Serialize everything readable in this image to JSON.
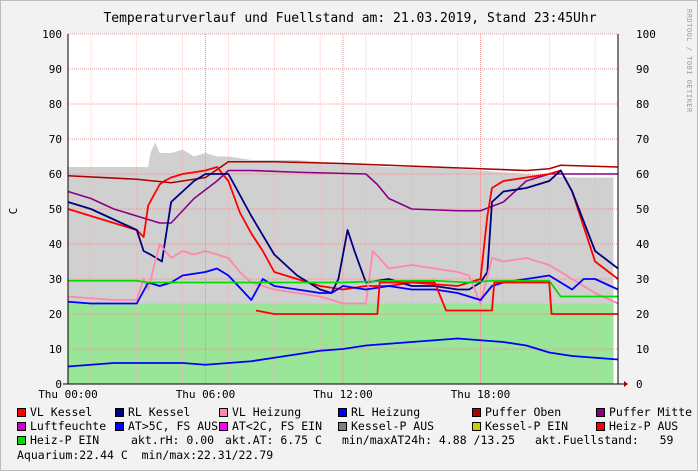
{
  "colors": {
    "vl_kessel": "#ff0000",
    "rl_kessel": "#000080",
    "vl_heizung": "#ff88aa",
    "rl_heizung": "#0000ff",
    "puffer_oben": "#aa0000",
    "puffer_mitte": "#880088",
    "luftfeuchte": "#cc00cc",
    "at_gt5": "#0000ff",
    "at_lt2": "#ff00ff",
    "kessel_p_aus": "#808080",
    "kessel_p_ein": "#cccc00",
    "heiz_p_aus": "#ff0000",
    "heiz_p_ein": "#00dd00",
    "fill_grey": "#d0d0d0",
    "fill_green": "#99e699"
  },
  "chart_data": {
    "type": "line",
    "title": "Temperaturverlauf und Fuellstand am: 21.03.2019, Stand 23:45Uhr",
    "watermark": "RRDTOOL / TOBI OETIKER",
    "ylabel": "C",
    "ylim": [
      0,
      100
    ],
    "yticks": [
      "0",
      "10",
      "20",
      "30",
      "40",
      "50",
      "60",
      "70",
      "80",
      "90",
      "100"
    ],
    "xlim": [
      0,
      24
    ],
    "xticks": [
      {
        "x": 0,
        "label": "Thu 00:00"
      },
      {
        "x": 6,
        "label": "Thu 06:00"
      },
      {
        "x": 12,
        "label": "Thu 12:00"
      },
      {
        "x": 18,
        "label": "Thu 18:00"
      }
    ],
    "series": [
      {
        "key": "fill_grey",
        "kind": "area",
        "x": [
          0,
          3,
          3.5,
          3.6,
          3.8,
          4,
          4.5,
          5,
          5.5,
          6,
          6.5,
          7,
          8,
          10,
          12,
          14,
          16,
          18,
          20,
          22,
          23.8
        ],
        "y": [
          62,
          62,
          62,
          66,
          69,
          66,
          66,
          67,
          65,
          66,
          65,
          65,
          64,
          64,
          63,
          62,
          62,
          61,
          60,
          59,
          59
        ]
      },
      {
        "key": "fill_green",
        "kind": "area",
        "x": [
          0,
          23.8
        ],
        "y": [
          23,
          23
        ]
      },
      {
        "key": "puffer_oben",
        "name": "Puffer Oben",
        "x": [
          0,
          3,
          4.5,
          6,
          7,
          9,
          12,
          14,
          16,
          18,
          20,
          21,
          21.5,
          24
        ],
        "y": [
          59.5,
          58.5,
          57.5,
          59,
          63.5,
          63.5,
          63,
          62.5,
          62,
          61.5,
          61,
          61.5,
          62.5,
          62
        ]
      },
      {
        "key": "puffer_mitte",
        "name": "Puffer Mitte",
        "x": [
          0,
          1,
          2,
          3,
          4,
          4.5,
          5.5,
          6.5,
          7,
          8,
          10,
          13,
          13.5,
          14,
          15,
          17,
          18,
          19,
          20,
          21,
          22,
          23,
          24
        ],
        "y": [
          55,
          53,
          50,
          48,
          46,
          46,
          53,
          58,
          61,
          61,
          60.5,
          60,
          57,
          53,
          50,
          49.5,
          49.5,
          52,
          58,
          60,
          60,
          60,
          60
        ]
      },
      {
        "key": "vl_kessel",
        "name": "VL Kessel",
        "x": [
          0,
          1,
          2,
          3,
          3.3,
          3.5,
          4,
          4.2,
          4.5,
          5,
          6,
          6.5,
          7,
          7.5,
          8,
          8.5,
          9,
          10,
          11,
          12,
          12.5,
          13,
          14,
          15,
          16,
          17,
          17.5,
          18,
          18.3,
          18.5,
          19,
          20,
          21,
          21.5,
          22,
          23,
          24
        ],
        "y": [
          50,
          48,
          46,
          44,
          42,
          51,
          57,
          58,
          59,
          60,
          61,
          62,
          58,
          49,
          43,
          38,
          32,
          30,
          28,
          27,
          27.5,
          28,
          28,
          29,
          28.5,
          28,
          29,
          30,
          48,
          56,
          58,
          59,
          60,
          61,
          55,
          35,
          30
        ]
      },
      {
        "key": "rl_kessel",
        "name": "RL Kessel",
        "x": [
          0,
          1,
          2,
          3,
          3.3,
          3.6,
          4.1,
          4.5,
          5,
          5.5,
          6,
          7,
          8,
          9,
          10,
          11,
          11.5,
          11.8,
          12.2,
          12.5,
          13,
          14,
          15,
          16,
          17,
          17.5,
          18,
          18.3,
          18.5,
          19,
          20,
          21,
          21.5,
          22,
          23,
          24
        ],
        "y": [
          52,
          50,
          47,
          44,
          38,
          37,
          35,
          52,
          55,
          58,
          60,
          60,
          48,
          37,
          31,
          27,
          26,
          30,
          44,
          38,
          29,
          30,
          28,
          28,
          27,
          27,
          29,
          32,
          52,
          55,
          56,
          58,
          61,
          55,
          38,
          33
        ]
      },
      {
        "key": "vl_heizung",
        "name": "VL Heizung",
        "x": [
          0,
          1,
          2,
          3,
          3.3,
          3.5,
          4,
          4.5,
          5,
          5.5,
          6,
          6.5,
          7,
          7.5,
          8,
          9,
          10,
          11,
          12,
          13,
          13.3,
          14,
          15,
          16,
          17,
          17.5,
          18,
          18.5,
          19,
          20,
          21,
          22,
          23,
          24
        ],
        "y": [
          25,
          24.5,
          24,
          24,
          30,
          27,
          40,
          36,
          38,
          37,
          38,
          37,
          36,
          32,
          29,
          27,
          26,
          25,
          23,
          23,
          38,
          33,
          34,
          33,
          32,
          31,
          23,
          36,
          35,
          36,
          34,
          30,
          26,
          23
        ]
      },
      {
        "key": "rl_heizung",
        "name": "RL Heizung",
        "x": [
          0,
          1,
          2,
          3,
          3.5,
          4,
          4.5,
          5,
          6,
          6.5,
          7,
          8,
          8.5,
          9,
          10,
          11,
          11.5,
          12,
          13,
          14,
          15,
          16,
          17,
          17.5,
          18,
          18.5,
          19,
          20,
          21,
          22,
          22.5,
          23,
          24
        ],
        "y": [
          23.5,
          23,
          23,
          23,
          29,
          28,
          29,
          31,
          32,
          33,
          31,
          24,
          30,
          28,
          27,
          26,
          26,
          28,
          27,
          28,
          27,
          27,
          26,
          25,
          24,
          28,
          29,
          30,
          31,
          27,
          30,
          30,
          27
        ]
      },
      {
        "key": "heiz_p_ein",
        "name": "Heiz-P EIN",
        "x": [
          0,
          3,
          3.5,
          6,
          8,
          12,
          14,
          16,
          17.5,
          18.5,
          21,
          21.5,
          24
        ],
        "y": [
          29.5,
          29.5,
          29,
          29,
          29,
          29,
          29.5,
          29.5,
          29,
          29.5,
          29.5,
          25,
          25
        ]
      },
      {
        "key": "heiz_p_aus",
        "name": "Heiz-P AUS",
        "x": [
          0,
          8,
          8.2,
          9,
          10,
          12,
          13.5,
          13.6,
          16,
          16.5,
          18.5,
          18.6,
          21,
          21.1,
          24
        ],
        "y": [
          null,
          null,
          21,
          20,
          20,
          20,
          20,
          29,
          29,
          21,
          21,
          29,
          29,
          20,
          20
        ]
      },
      {
        "key": "at_gt5",
        "name": "AT>5C, FS AUS",
        "x": [
          0,
          1,
          2,
          3,
          4,
          5,
          6,
          7,
          8,
          9,
          10,
          11,
          12,
          13,
          14,
          15,
          16,
          17,
          18,
          19,
          20,
          21,
          22,
          23,
          24
        ],
        "y": [
          5,
          5.5,
          6,
          6,
          6,
          6,
          5.5,
          6,
          6.5,
          7.5,
          8.5,
          9.5,
          10,
          11,
          11.5,
          12,
          12.5,
          13,
          12.5,
          12,
          11,
          9,
          8,
          7.5,
          7
        ]
      }
    ]
  },
  "legend": [
    {
      "key": "vl_kessel",
      "label": "VL Kessel"
    },
    {
      "key": "rl_kessel",
      "label": "RL Kessel"
    },
    {
      "key": "vl_heizung",
      "label": "VL Heizung"
    },
    {
      "key": "rl_heizung",
      "label": "RL Heizung"
    },
    {
      "key": "puffer_oben",
      "label": "Puffer Oben"
    },
    {
      "key": "puffer_mitte",
      "label": "Puffer Mitte"
    },
    {
      "key": "luftfeuchte",
      "label": "Luftfeuchte"
    },
    {
      "key": "at_gt5",
      "label": "AT>5C, FS AUS"
    },
    {
      "key": "at_lt2",
      "label": "AT<2C, FS EIN"
    },
    {
      "key": "kessel_p_aus",
      "label": "Kessel-P AUS"
    },
    {
      "key": "kessel_p_ein",
      "label": "Kessel-P EIN"
    },
    {
      "key": "heiz_p_aus",
      "label": "Heiz-P AUS"
    },
    {
      "key": "heiz_p_ein",
      "label": "Heiz-P EIN"
    }
  ],
  "stats": {
    "rh": "akt.rH: 0.00",
    "at": "akt.AT: 6.75 C",
    "minmax": "min/maxAT24h: 4.88 /13.25",
    "fuell": "akt.Fuellstand:   59",
    "aquarium": "Aquarium:22.44 C  min/max:22.31/22.79"
  }
}
